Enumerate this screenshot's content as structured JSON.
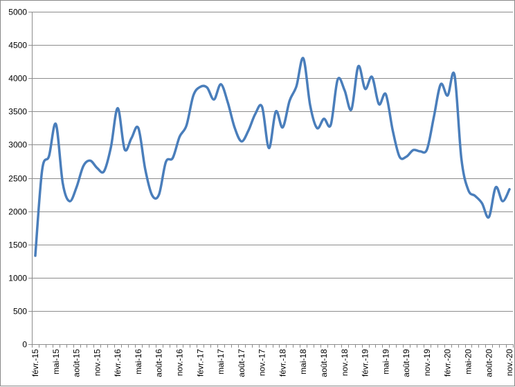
{
  "chart_data": {
    "type": "line",
    "title": "",
    "xlabel": "",
    "ylabel": "",
    "ylim": [
      0,
      5000
    ],
    "yticks": [
      0,
      500,
      1000,
      1500,
      2000,
      2500,
      3000,
      3500,
      4000,
      4500,
      5000
    ],
    "grid": true,
    "legend": "none",
    "x": [
      "févr.-15",
      "mars-15",
      "avr.-15",
      "mai-15",
      "juin-15",
      "juil.-15",
      "août-15",
      "sept.-15",
      "oct.-15",
      "nov.-15",
      "déc.-15",
      "janv.-16",
      "févr.-16",
      "mars-16",
      "avr.-16",
      "mai-16",
      "juin-16",
      "juil.-16",
      "août-16",
      "sept.-16",
      "oct.-16",
      "nov.-16",
      "déc.-16",
      "janv.-17",
      "févr.-17",
      "mars-17",
      "avr.-17",
      "mai-17",
      "juin-17",
      "juil.-17",
      "août-17",
      "sept.-17",
      "oct.-17",
      "nov.-17",
      "déc.-17",
      "janv.-18",
      "févr.-18",
      "mars-18",
      "avr.-18",
      "mai-18",
      "juin-18",
      "juil.-18",
      "août-18",
      "sept.-18",
      "oct.-18",
      "nov.-18",
      "déc.-18",
      "janv.-19",
      "févr.-19",
      "mars-19",
      "avr.-19",
      "mai-19",
      "juin-19",
      "juil.-19",
      "août-19",
      "sept.-19",
      "oct.-19",
      "nov.-19",
      "déc.-19",
      "janv.-20",
      "févr.-20",
      "mars-20",
      "avr.-20",
      "mai-20",
      "juin-20",
      "juil.-20",
      "août-20",
      "sept.-20",
      "oct.-20",
      "nov.-20"
    ],
    "xtick_labels": [
      "févr.-15",
      "mai-15",
      "août-15",
      "nov.-15",
      "févr.-16",
      "mai-16",
      "août-16",
      "nov.-16",
      "févr.-17",
      "mai-17",
      "août-17",
      "nov.-17",
      "févr.-18",
      "mai-18",
      "août-18",
      "nov.-18",
      "févr.-19",
      "mai-19",
      "août-19",
      "nov.-19",
      "févr.-20",
      "mai-20",
      "août-20",
      "nov.-20"
    ],
    "series": [
      {
        "values": [
          1330,
          2620,
          2830,
          3310,
          2420,
          2150,
          2360,
          2680,
          2760,
          2650,
          2600,
          2960,
          3550,
          2930,
          3100,
          3250,
          2630,
          2240,
          2250,
          2740,
          2800,
          3120,
          3290,
          3740,
          3870,
          3860,
          3680,
          3910,
          3640,
          3260,
          3050,
          3210,
          3460,
          3570,
          2950,
          3500,
          3260,
          3660,
          3880,
          4300,
          3590,
          3250,
          3390,
          3300,
          3980,
          3820,
          3530,
          4180,
          3840,
          4020,
          3610,
          3760,
          3220,
          2820,
          2820,
          2920,
          2900,
          2930,
          3420,
          3910,
          3740,
          4050,
          2790,
          2320,
          2230,
          2120,
          1910,
          2360,
          2150,
          2330
        ],
        "color": "#4a7ebb"
      }
    ]
  }
}
